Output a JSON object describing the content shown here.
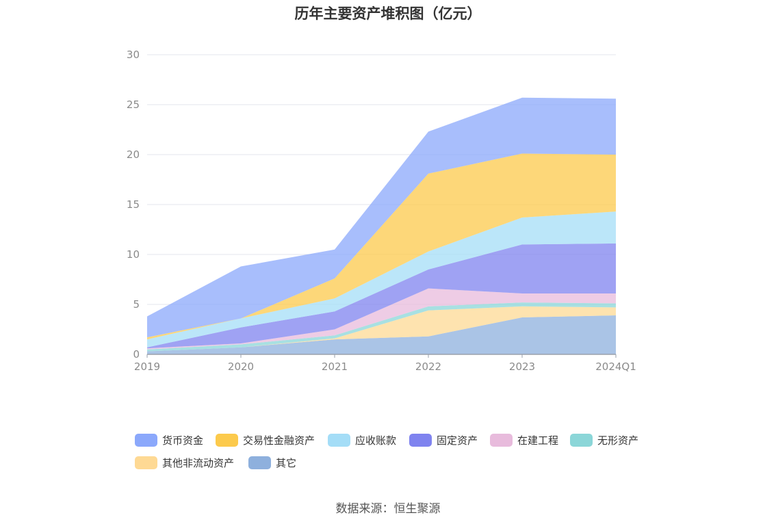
{
  "chart_data": {
    "type": "area",
    "stacked": true,
    "title": "历年主要资产堆积图（亿元）",
    "categories": [
      "2019",
      "2020",
      "2021",
      "2022",
      "2023",
      "2024Q1"
    ],
    "ylim": [
      0,
      30
    ],
    "yticks": [
      0,
      5,
      10,
      15,
      20,
      25,
      30
    ],
    "grid": true,
    "legend_position": "bottom",
    "series": [
      {
        "name": "其它",
        "color": "#8eb0dd",
        "values": [
          0.3,
          0.7,
          1.5,
          1.8,
          3.7,
          3.9
        ]
      },
      {
        "name": "其他非流动资产",
        "color": "#fed994",
        "values": [
          0.0,
          0.0,
          0.1,
          2.6,
          1.1,
          0.8
        ]
      },
      {
        "name": "无形资产",
        "color": "#8bd6d8",
        "values": [
          0.2,
          0.3,
          0.3,
          0.4,
          0.4,
          0.4
        ]
      },
      {
        "name": "在建工程",
        "color": "#e8bbdc",
        "values": [
          0.1,
          0.1,
          0.6,
          1.8,
          0.9,
          1.0
        ]
      },
      {
        "name": "固定资产",
        "color": "#7f83ef",
        "values": [
          0.1,
          1.6,
          1.8,
          1.9,
          4.9,
          5.0
        ]
      },
      {
        "name": "应收账款",
        "color": "#a4ddf7",
        "values": [
          0.8,
          0.9,
          1.3,
          1.8,
          2.7,
          3.2
        ]
      },
      {
        "name": "交易性金融资产",
        "color": "#fcca4c",
        "values": [
          0.2,
          0.0,
          2.0,
          7.8,
          6.4,
          5.7
        ]
      },
      {
        "name": "货币资金",
        "color": "#8ba8fb",
        "values": [
          2.1,
          5.2,
          2.9,
          4.2,
          5.6,
          5.6
        ]
      }
    ]
  },
  "legend": [
    {
      "name": "货币资金",
      "color": "#8ba8fb"
    },
    {
      "name": "交易性金融资产",
      "color": "#fcca4c"
    },
    {
      "name": "应收账款",
      "color": "#a4ddf7"
    },
    {
      "name": "固定资产",
      "color": "#7f83ef"
    },
    {
      "name": "在建工程",
      "color": "#e8bbdc"
    },
    {
      "name": "无形资产",
      "color": "#8bd6d8"
    },
    {
      "name": "其他非流动资产",
      "color": "#fed994"
    },
    {
      "name": "其它",
      "color": "#8eb0dd"
    }
  ],
  "source": "数据来源：恒生聚源"
}
